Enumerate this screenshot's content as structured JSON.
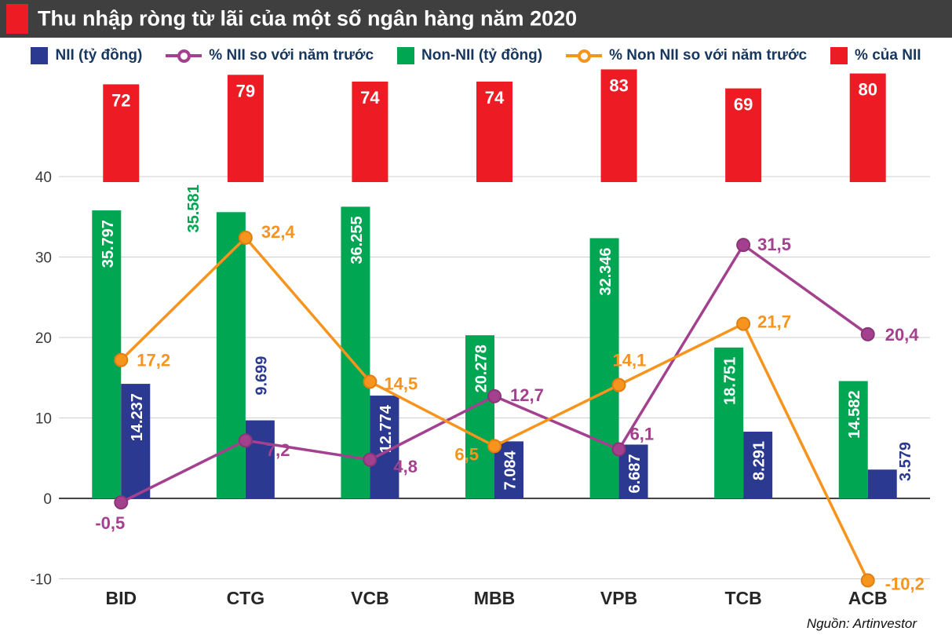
{
  "header": {
    "title": "Thu nhập ròng từ lãi của một số ngân hàng năm 2020"
  },
  "legend": [
    {
      "label": "NII (tỷ đồng)",
      "type": "square",
      "color": "#2b3990"
    },
    {
      "label": "% NII so với năm trước",
      "type": "line",
      "color": "#a3418f"
    },
    {
      "label": "Non-NII (tỷ đồng)",
      "type": "square",
      "color": "#00a651"
    },
    {
      "label": "% Non NII so với năm trước",
      "type": "line",
      "color": "#f7941d"
    },
    {
      "label": "% của NII",
      "type": "square",
      "color": "#ed1c24"
    }
  ],
  "source": "Nguồn: Artinvestor",
  "colors": {
    "titlebar_bg": "#3f3f3f",
    "accent_red": "#ed1c24",
    "nii_bar": "#2b3990",
    "non_nii_bar": "#00a651",
    "nii_pct_line": "#a3418f",
    "non_nii_pct_line": "#f7941d",
    "grid": "#cfcfcf",
    "zero_line": "#444444",
    "legend_text": "#17375e"
  },
  "chart_data": {
    "type": "bar",
    "title": "Thu nhập ròng từ lãi của một số ngân hàng năm 2020",
    "categories": [
      "BID",
      "CTG",
      "VCB",
      "MBB",
      "VPB",
      "TCB",
      "ACB"
    ],
    "xlabel": "",
    "ylabel": "",
    "y_axis": {
      "ticks": [
        40,
        30,
        20,
        10,
        0,
        -10
      ],
      "ylim": [
        -13,
        40
      ],
      "grid": true
    },
    "legend_position": "top",
    "series": [
      {
        "name": "NII (tỷ đồng)",
        "type": "bar",
        "color": "#2b3990",
        "values": [
          14.237,
          9.699,
          12.774,
          7.084,
          6.687,
          8.291,
          3.579
        ],
        "labels": [
          "14.237",
          "9.699",
          "12.774",
          "7.084",
          "6.687",
          "8.291",
          "3.579"
        ]
      },
      {
        "name": "Non-NII (tỷ đồng)",
        "type": "bar",
        "color": "#00a651",
        "values": [
          35.797,
          35.581,
          36.255,
          20.278,
          32.346,
          18.751,
          14.582
        ],
        "labels": [
          "35.797",
          "35.581",
          "36.255",
          "20.278",
          "32.346",
          "18.751",
          "14.582"
        ]
      },
      {
        "name": "% NII so với năm trước",
        "type": "line",
        "color": "#a3418f",
        "values": [
          -0.5,
          7.2,
          4.8,
          12.7,
          6.1,
          31.5,
          20.4
        ],
        "labels": [
          "-0,5",
          "7,2",
          "4,8",
          "12,7",
          "6,1",
          "31,5",
          "20,4"
        ]
      },
      {
        "name": "% Non NII so với năm trước",
        "type": "line",
        "color": "#f7941d",
        "values": [
          17.2,
          32.4,
          14.5,
          6.5,
          14.1,
          21.7,
          -10.2
        ],
        "labels": [
          "17,2",
          "32,4",
          "14,5",
          "6,5",
          "14,1",
          "21,7",
          "-10,2"
        ]
      },
      {
        "name": "% của NII",
        "type": "top-bar",
        "color": "#ed1c24",
        "values": [
          72,
          79,
          74,
          74,
          83,
          69,
          80
        ],
        "labels": [
          "72",
          "79",
          "74",
          "74",
          "83",
          "69",
          "80"
        ]
      }
    ]
  }
}
